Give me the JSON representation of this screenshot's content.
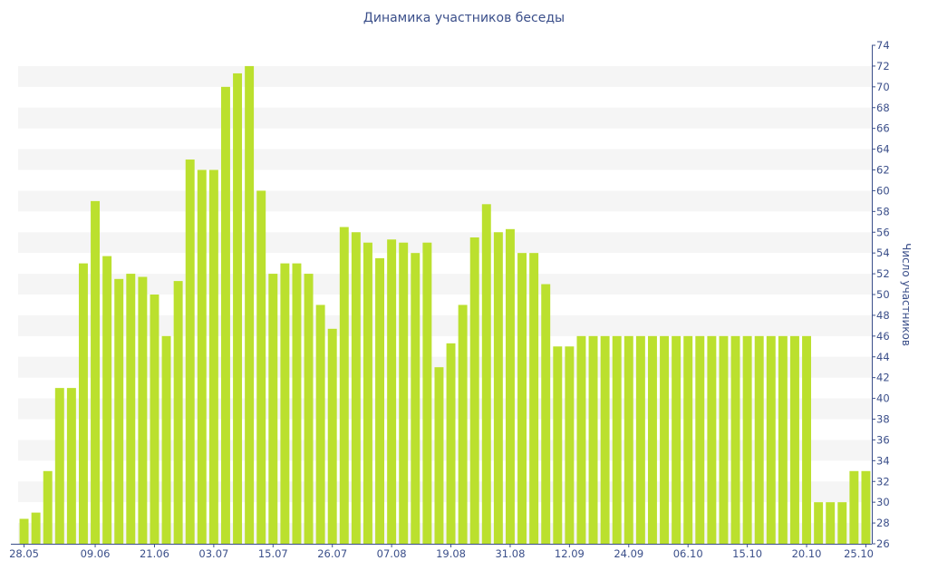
{
  "colors": {
    "bar": "#bbe02e",
    "band": "#f5f5f5",
    "axis": "#3b4f8a",
    "text": "#3b4f8a"
  },
  "chart_data": {
    "type": "bar",
    "title": "Динамика участников беседы",
    "xlabel": "",
    "ylabel": "Число участников",
    "y_axis_position": "right",
    "ylim": [
      26,
      74
    ],
    "y_ticks": [
      26,
      28,
      30,
      32,
      34,
      36,
      38,
      40,
      42,
      44,
      46,
      48,
      50,
      52,
      54,
      56,
      58,
      60,
      62,
      64,
      66,
      68,
      70,
      72,
      74
    ],
    "x_tick_labels": [
      {
        "label": "28.05",
        "index": 0
      },
      {
        "label": "09.06",
        "index": 6
      },
      {
        "label": "21.06",
        "index": 11
      },
      {
        "label": "03.07",
        "index": 16
      },
      {
        "label": "15.07",
        "index": 21
      },
      {
        "label": "26.07",
        "index": 26
      },
      {
        "label": "07.08",
        "index": 31
      },
      {
        "label": "19.08",
        "index": 36
      },
      {
        "label": "31.08",
        "index": 41
      },
      {
        "label": "12.09",
        "index": 46
      },
      {
        "label": "24.09",
        "index": 51
      },
      {
        "label": "06.10",
        "index": 56
      },
      {
        "label": "15.10",
        "index": 61
      },
      {
        "label": "20.10",
        "index": 66
      },
      {
        "label": "25.10",
        "index": 71
      }
    ],
    "grid": "alternating horizontal bands",
    "legend": "none",
    "values": [
      28.4,
      29,
      33,
      41,
      41,
      53,
      59,
      53.7,
      51.5,
      52,
      51.7,
      50,
      46,
      51.3,
      63,
      62,
      62,
      70,
      71.3,
      72,
      60,
      52,
      53,
      53,
      52,
      49,
      46.7,
      56.5,
      56,
      55,
      53.5,
      55.3,
      55,
      54,
      55,
      43,
      45.3,
      49,
      55.5,
      58.7,
      56,
      56.3,
      54,
      54,
      51,
      45,
      45,
      46,
      46,
      46,
      46,
      46,
      46,
      46,
      46,
      46,
      46,
      46,
      46,
      46,
      46,
      46,
      46,
      46,
      46,
      46,
      46,
      30,
      30,
      30,
      33,
      33
    ]
  }
}
